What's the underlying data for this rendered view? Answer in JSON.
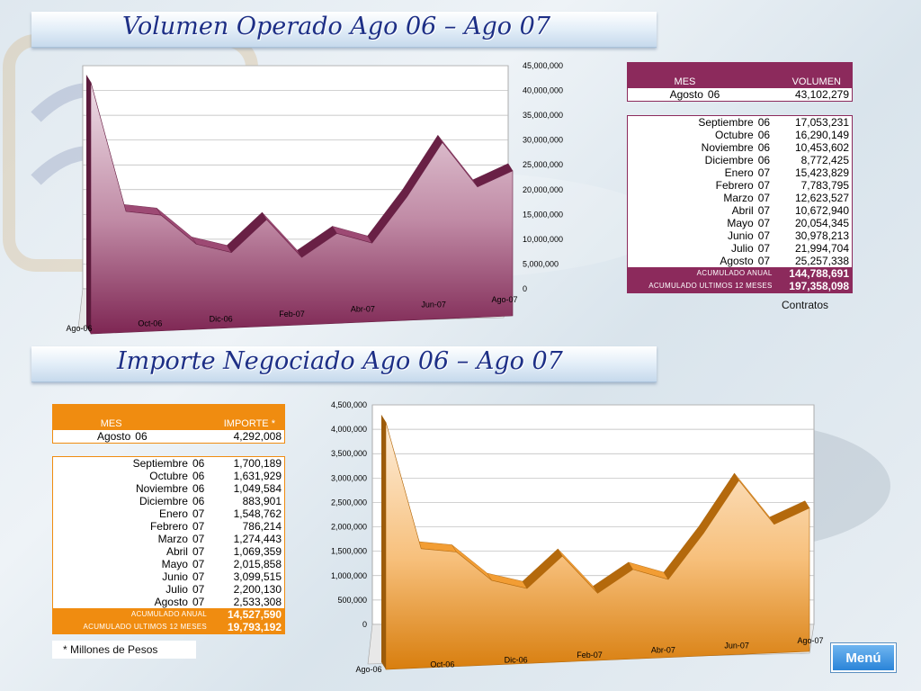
{
  "titles": {
    "top": "Volumen Operado  Ago 06 – Ago 07",
    "bottom": "Importe Negociado  Ago 06 – Ago 07"
  },
  "colors": {
    "volume_accent": "#8c2a5c",
    "importe_accent": "#f08c10",
    "title_text": "#1d2f86",
    "menu_button": "#2a84d8"
  },
  "volume_table": {
    "header": {
      "mes": "MES",
      "valor": "VOLUMEN"
    },
    "first": {
      "month": "Agosto",
      "year": "06",
      "value": "43,102,279"
    },
    "rows": [
      {
        "month": "Septiembre",
        "year": "06",
        "value": "17,053,231"
      },
      {
        "month": "Octubre",
        "year": "06",
        "value": "16,290,149"
      },
      {
        "month": "Noviembre",
        "year": "06",
        "value": "10,453,602"
      },
      {
        "month": "Diciembre",
        "year": "06",
        "value": "8,772,425"
      },
      {
        "month": "Enero",
        "year": "07",
        "value": "15,423,829"
      },
      {
        "month": "Febrero",
        "year": "07",
        "value": "7,783,795"
      },
      {
        "month": "Marzo",
        "year": "07",
        "value": "12,623,527"
      },
      {
        "month": "Abril",
        "year": "07",
        "value": "10,672,940"
      },
      {
        "month": "Mayo",
        "year": "07",
        "value": "20,054,345"
      },
      {
        "month": "Junio",
        "year": "07",
        "value": "30,978,213"
      },
      {
        "month": "Julio",
        "year": "07",
        "value": "21,994,704"
      },
      {
        "month": "Agosto",
        "year": "07",
        "value": "25,257,338"
      }
    ],
    "summary": [
      {
        "label": "ACUMULADO ANUAL",
        "value": "144,788,691"
      },
      {
        "label": "ACUMULADO ULTIMOS 12 MESES",
        "value": "197,358,098"
      }
    ],
    "footnote": "Contratos"
  },
  "importe_table": {
    "header": {
      "mes": "MES",
      "valor": "IMPORTE *"
    },
    "first": {
      "month": "Agosto",
      "year": "06",
      "value": "4,292,008"
    },
    "rows": [
      {
        "month": "Septiembre",
        "year": "06",
        "value": "1,700,189"
      },
      {
        "month": "Octubre",
        "year": "06",
        "value": "1,631,929"
      },
      {
        "month": "Noviembre",
        "year": "06",
        "value": "1,049,584"
      },
      {
        "month": "Diciembre",
        "year": "06",
        "value": "883,901"
      },
      {
        "month": "Enero",
        "year": "07",
        "value": "1,548,762"
      },
      {
        "month": "Febrero",
        "year": "07",
        "value": "786,214"
      },
      {
        "month": "Marzo",
        "year": "07",
        "value": "1,274,443"
      },
      {
        "month": "Abril",
        "year": "07",
        "value": "1,069,359"
      },
      {
        "month": "Mayo",
        "year": "07",
        "value": "2,015,858"
      },
      {
        "month": "Junio",
        "year": "07",
        "value": "3,099,515"
      },
      {
        "month": "Julio",
        "year": "07",
        "value": "2,200,130"
      },
      {
        "month": "Agosto",
        "year": "07",
        "value": "2,533,308"
      }
    ],
    "summary": [
      {
        "label": "ACUMULADO ANUAL",
        "value": "14,527,590"
      },
      {
        "label": "ACUMULADO ULTIMOS 12 MESES",
        "value": "19,793,192"
      }
    ],
    "footnote": "* Millones de Pesos"
  },
  "menu": {
    "label": "Menú"
  },
  "chart_data": [
    {
      "type": "area",
      "title": "",
      "xlabel": "",
      "ylabel": "",
      "ylim": [
        0,
        45000000
      ],
      "yticks": [
        0,
        5000000,
        10000000,
        15000000,
        20000000,
        25000000,
        30000000,
        35000000,
        40000000,
        45000000
      ],
      "ytick_labels": [
        "0",
        "5,000,000",
        "10,000,000",
        "15,000,000",
        "20,000,000",
        "25,000,000",
        "30,000,000",
        "35,000,000",
        "40,000,000",
        "45,000,000"
      ],
      "x_labels": [
        "Ago-06",
        "Oct-06",
        "Dic-06",
        "Feb-07",
        "Abr-07",
        "Jun-07",
        "Ago-07"
      ],
      "x_label_index": [
        0,
        2,
        4,
        6,
        8,
        10,
        12
      ],
      "grid": true,
      "legend": "none",
      "color": "#8c2a5c",
      "series": [
        {
          "values": [
            43102279,
            17053231,
            16290149,
            10453602,
            8772425,
            15423829,
            7783795,
            12623527,
            10672940,
            20054345,
            30978213,
            21994704,
            25257338
          ]
        }
      ]
    },
    {
      "type": "area",
      "title": "",
      "xlabel": "",
      "ylabel": "",
      "ylim": [
        0,
        4500000
      ],
      "yticks": [
        0,
        500000,
        1000000,
        1500000,
        2000000,
        2500000,
        3000000,
        3500000,
        4000000,
        4500000
      ],
      "ytick_labels": [
        "0",
        "500,000",
        "1,000,000",
        "1,500,000",
        "2,000,000",
        "2,500,000",
        "3,000,000",
        "3,500,000",
        "4,000,000",
        "4,500,000"
      ],
      "x_labels": [
        "Ago-06",
        "Oct-06",
        "Dic-06",
        "Feb-07",
        "Abr-07",
        "Jun-07",
        "Ago-07"
      ],
      "x_label_index": [
        0,
        2,
        4,
        6,
        8,
        10,
        12
      ],
      "grid": true,
      "legend": "none",
      "color": "#f08c10",
      "series": [
        {
          "values": [
            4292008,
            1700189,
            1631929,
            1049584,
            883901,
            1548762,
            786214,
            1274443,
            1069359,
            2015858,
            3099515,
            2200130,
            2533308
          ]
        }
      ]
    }
  ]
}
